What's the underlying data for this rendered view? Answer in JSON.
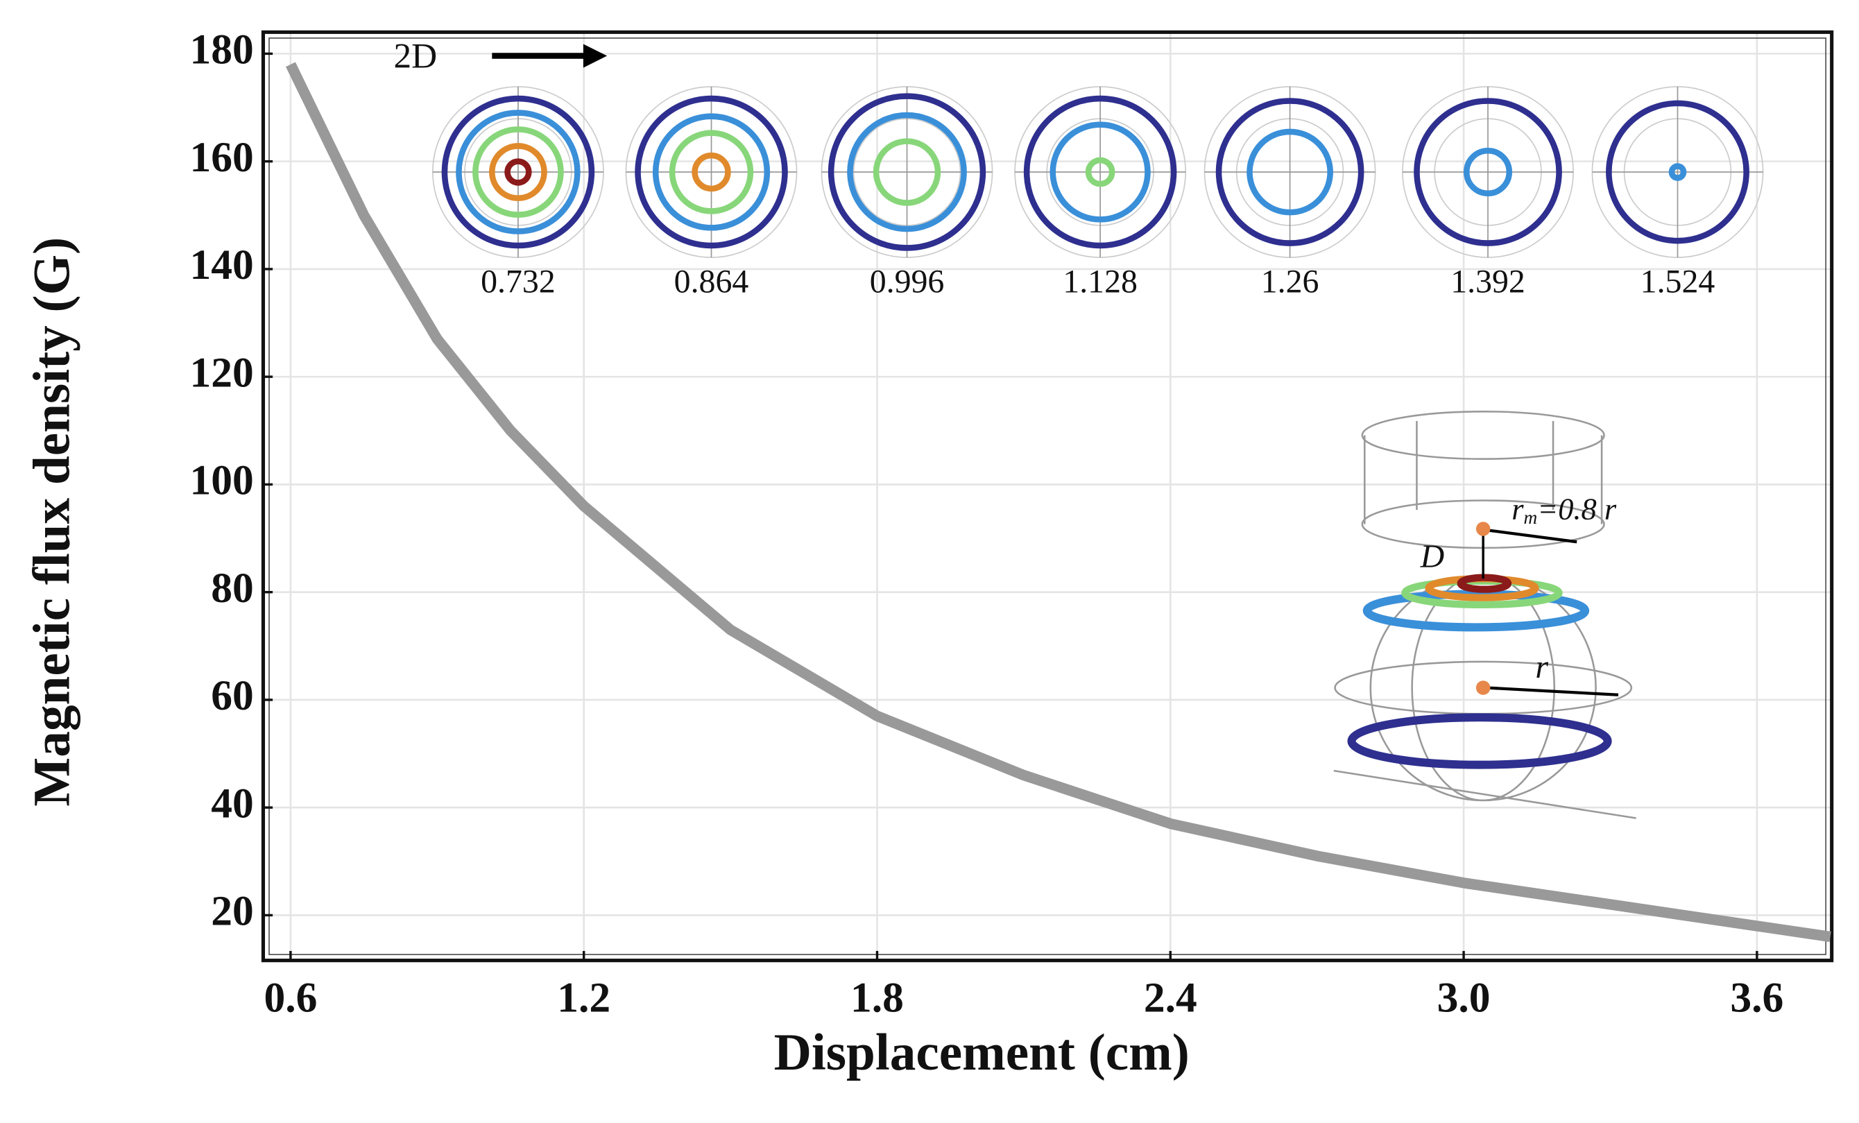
{
  "chart_data": {
    "type": "line",
    "xlabel": "Displacement (cm)",
    "ylabel": "Magnetic flux density (G)",
    "x": [
      0.6,
      0.75,
      0.9,
      1.05,
      1.2,
      1.5,
      1.8,
      2.1,
      2.4,
      2.7,
      3.0,
      3.3,
      3.6,
      3.75
    ],
    "series": [
      {
        "color": "#999999",
        "values": [
          178,
          150,
          127,
          110,
          96,
          73,
          57,
          46,
          37,
          31,
          26,
          22,
          18,
          16
        ]
      }
    ],
    "xlim": [
      0.544,
      3.753
    ],
    "ylim": [
      11.6,
      184
    ],
    "xticks": [
      0.6,
      1.2,
      1.8,
      2.4,
      {
        "value": 3,
        "label": "3.0"
      },
      3.6
    ],
    "yticks": [
      20,
      40,
      60,
      80,
      100,
      120,
      140,
      160,
      180
    ],
    "grid": true,
    "annotations": [
      "2D",
      "D",
      "r"
    ],
    "inset_annotation": {
      "main": "r",
      "sub": "m",
      "rest": "=0.8 r"
    },
    "inset_labels": [
      "0.732",
      "0.864",
      "0.996",
      "1.128",
      "1.26",
      "1.392",
      "1.524"
    ]
  }
}
